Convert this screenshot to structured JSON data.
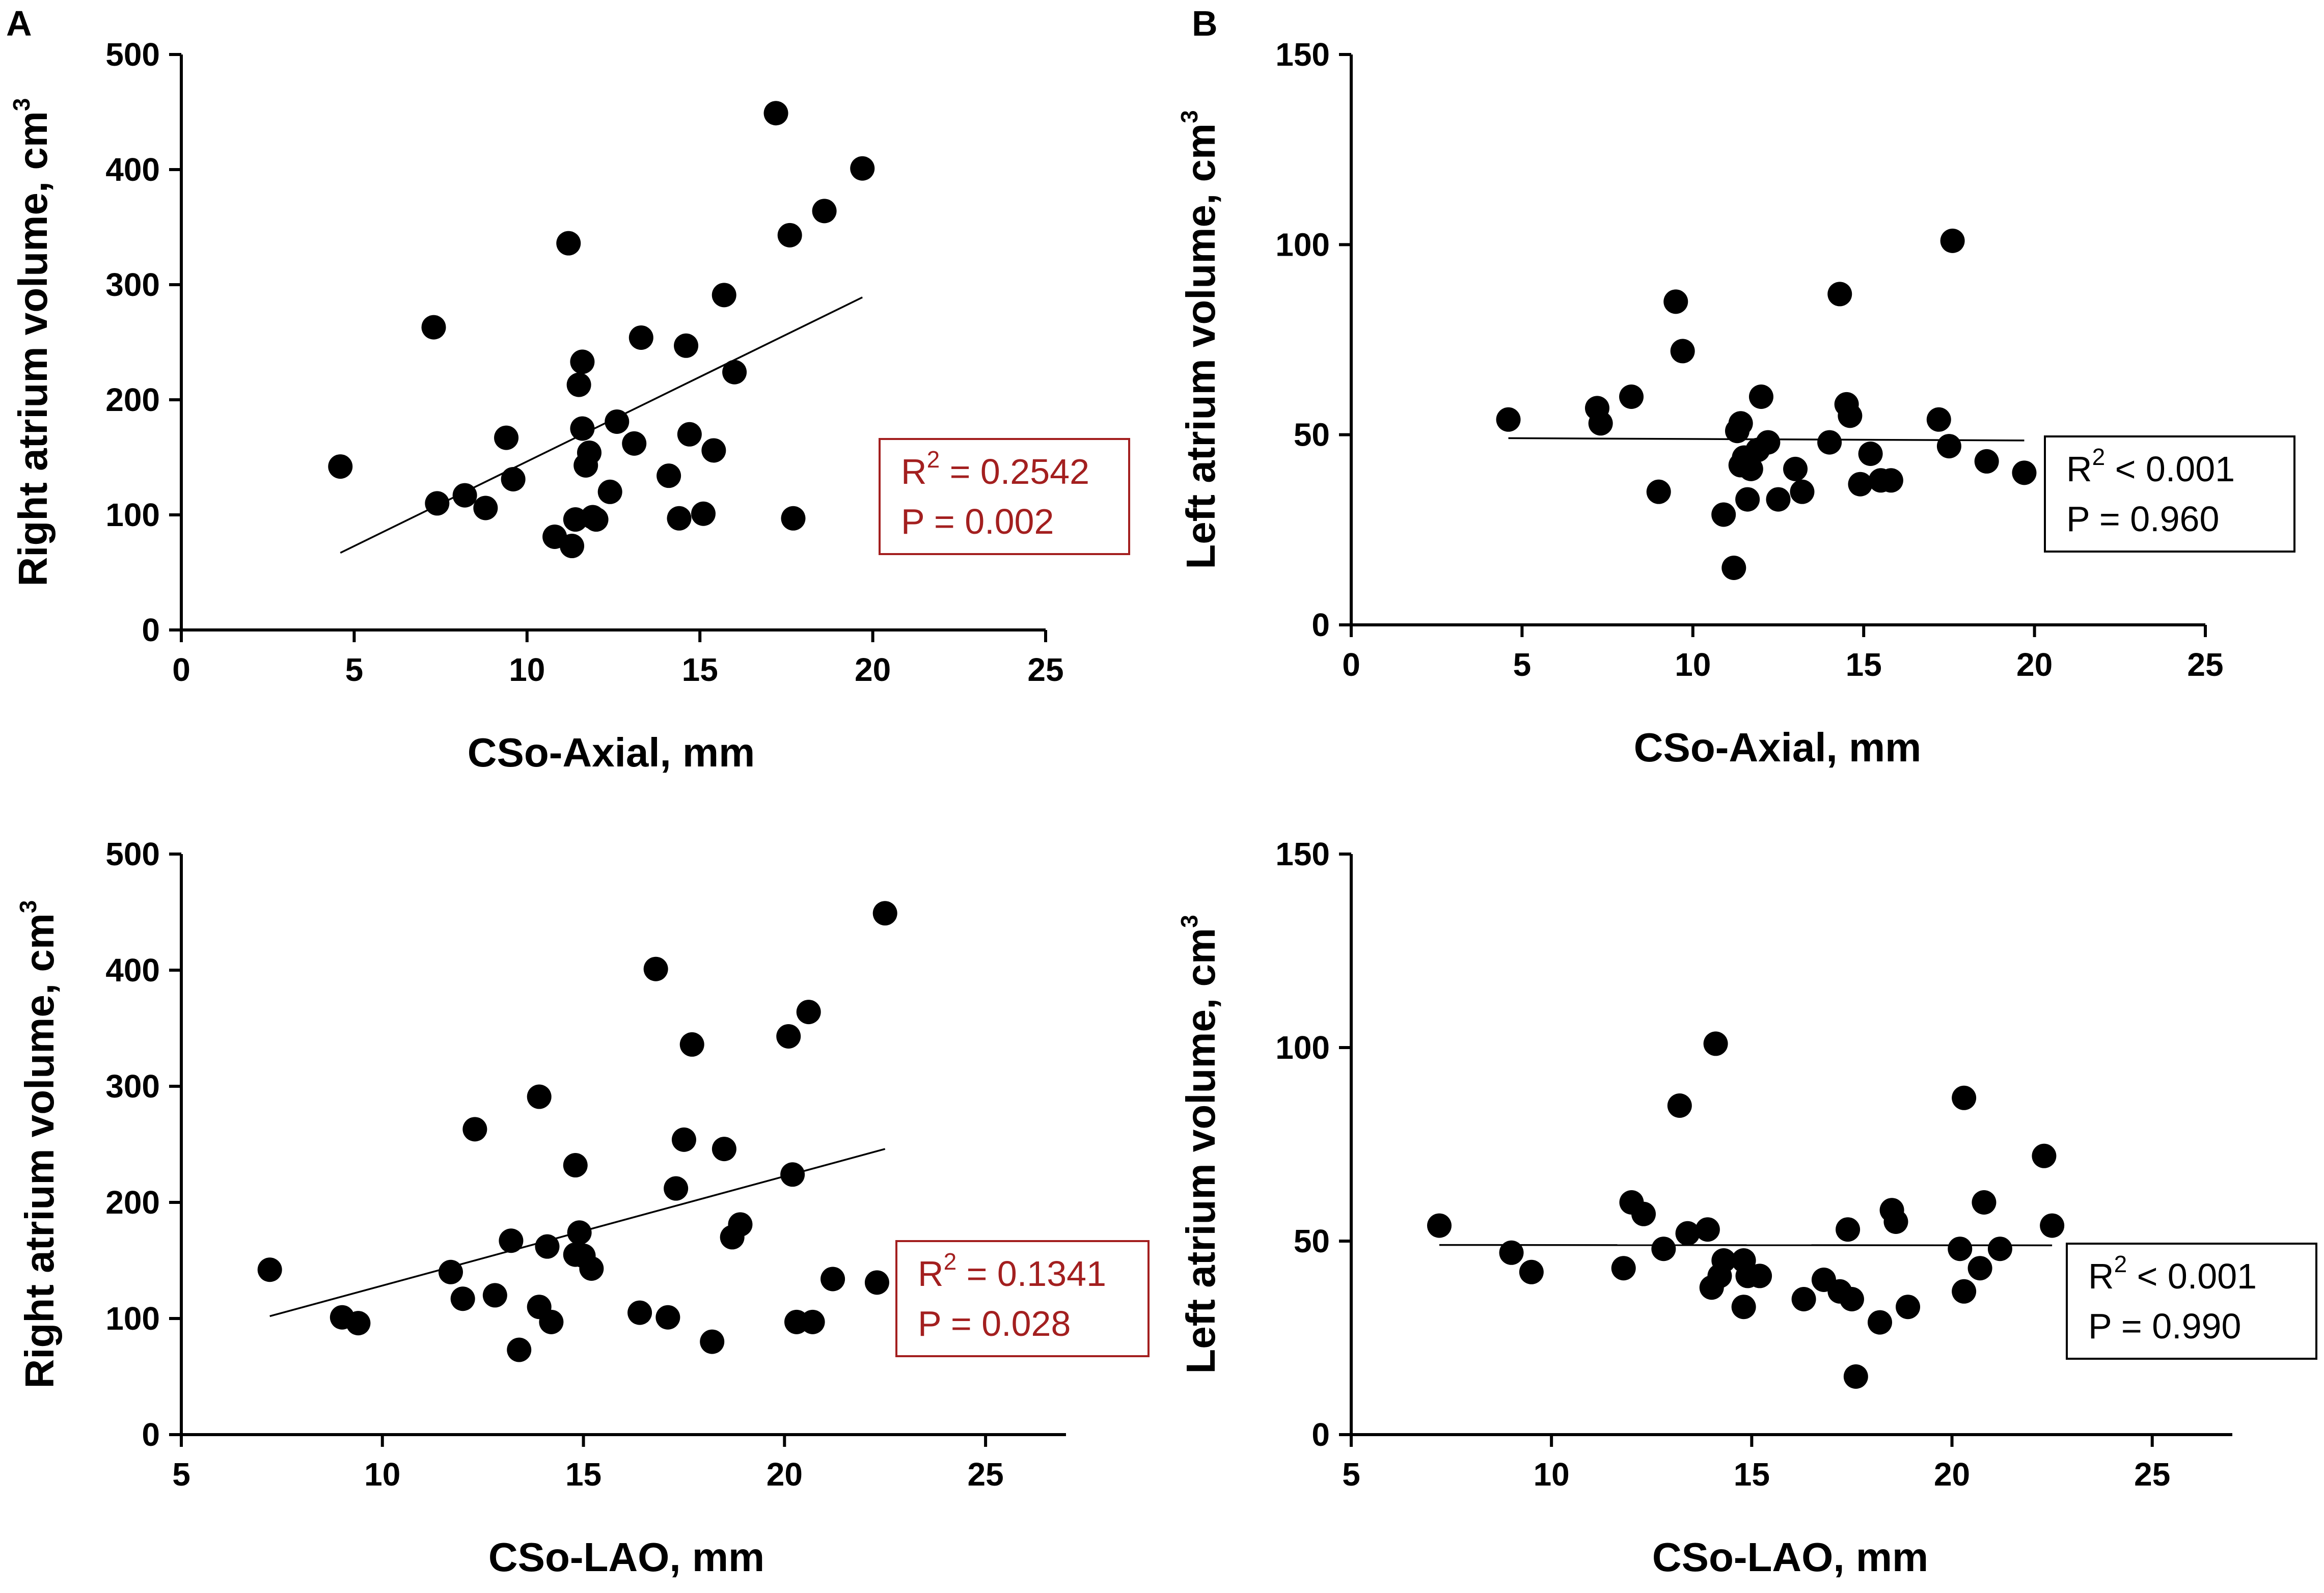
{
  "figure": {
    "panel_letters": [
      "A",
      "B"
    ]
  },
  "chart_data": [
    {
      "type": "scatter",
      "id": "a-top",
      "title": "",
      "xlabel": "CSo-Axial, mm",
      "ylabel_main": "Right atrium volume, cm",
      "ylabel_sup": "3",
      "xlim": [
        0,
        25
      ],
      "ylim": [
        0,
        500
      ],
      "xticks": [
        0,
        5,
        10,
        15,
        20,
        25
      ],
      "yticks": [
        0,
        100,
        200,
        300,
        400,
        500
      ],
      "x": [
        4.6,
        7.3,
        7.4,
        8.2,
        8.8,
        9.4,
        9.6,
        10.8,
        11.2,
        11.3,
        11.4,
        11.5,
        11.6,
        11.6,
        11.7,
        11.8,
        11.9,
        12.0,
        12.4,
        12.6,
        13.1,
        13.3,
        14.1,
        14.4,
        14.6,
        14.7,
        15.1,
        15.4,
        15.7,
        16.0,
        17.2,
        17.6,
        17.7,
        18.6,
        19.7
      ],
      "y": [
        142,
        263,
        110,
        117,
        106,
        167,
        131,
        81,
        336,
        73,
        96,
        213,
        233,
        175,
        143,
        154,
        98,
        96,
        120,
        181,
        162,
        254,
        134,
        97,
        247,
        170,
        101,
        156,
        291,
        224,
        449,
        343,
        97,
        364,
        401
      ],
      "fit_line": {
        "x": [
          4.6,
          19.7
        ],
        "y": [
          67,
          289
        ]
      },
      "stats": {
        "r2": "R",
        "r2_sup": "2",
        "r2_rest": " = 0.2542",
        "p": "P = 0.002"
      },
      "stats_color": "#a31f1f",
      "point_color": "#000000"
    },
    {
      "type": "scatter",
      "id": "b-top",
      "title": "",
      "xlabel": "CSo-Axial, mm",
      "ylabel_main": "Left atrium volume, cm",
      "ylabel_sup": "3",
      "xlim": [
        0,
        25
      ],
      "ylim": [
        0,
        150
      ],
      "xticks": [
        0,
        5,
        10,
        15,
        20,
        25
      ],
      "yticks": [
        0,
        50,
        100,
        150
      ],
      "x": [
        4.6,
        7.2,
        7.3,
        8.2,
        9.0,
        9.5,
        9.7,
        10.9,
        11.2,
        11.3,
        11.4,
        11.4,
        11.5,
        11.6,
        11.7,
        11.9,
        12.0,
        12.2,
        12.5,
        13.0,
        13.2,
        14.0,
        14.3,
        14.5,
        14.6,
        14.9,
        15.2,
        15.5,
        15.8,
        17.2,
        17.5,
        17.6,
        18.6,
        19.7
      ],
      "y": [
        54,
        57,
        53,
        60,
        35,
        85,
        72,
        29,
        15,
        51,
        53,
        42,
        44,
        33,
        41,
        46,
        60,
        48,
        33,
        41,
        35,
        48,
        87,
        58,
        55,
        37,
        45,
        38,
        38,
        54,
        47,
        101,
        43,
        40
      ],
      "fit_line": {
        "x": [
          4.6,
          19.7
        ],
        "y": [
          49.1,
          48.5
        ]
      },
      "stats": {
        "r2": "R",
        "r2_sup": "2",
        "r2_rest": " < 0.001",
        "p": "P = 0.960"
      },
      "stats_color": "#000000",
      "point_color": "#000000"
    },
    {
      "type": "scatter",
      "id": "a-bottom",
      "title": "",
      "xlabel": "CSo-LAO, mm",
      "ylabel_main": "Right atrium volume, cm",
      "ylabel_sup": "3",
      "xlim": [
        5,
        27
      ],
      "ylim": [
        0,
        500
      ],
      "xticks": [
        5,
        10,
        15,
        20,
        25
      ],
      "yticks": [
        0,
        100,
        200,
        300,
        400,
        500
      ],
      "x": [
        7.2,
        9.0,
        9.4,
        11.7,
        12.0,
        12.3,
        12.8,
        13.2,
        13.4,
        13.9,
        13.9,
        14.1,
        14.2,
        14.8,
        14.8,
        14.9,
        15.0,
        15.2,
        16.4,
        16.8,
        17.1,
        17.3,
        17.5,
        17.7,
        18.2,
        18.5,
        18.7,
        18.9,
        20.1,
        20.2,
        20.3,
        20.6,
        20.7,
        21.2,
        22.3,
        22.5
      ],
      "y": [
        142,
        101,
        96,
        140,
        117,
        263,
        120,
        167,
        73,
        291,
        110,
        162,
        97,
        232,
        155,
        174,
        154,
        143,
        105,
        401,
        101,
        212,
        254,
        336,
        80,
        246,
        170,
        181,
        343,
        224,
        97,
        364,
        97,
        134,
        131,
        449
      ],
      "fit_line": {
        "x": [
          7.2,
          22.5
        ],
        "y": [
          102,
          246
        ]
      },
      "stats": {
        "r2": "R",
        "r2_sup": "2",
        "r2_rest": " = 0.1341",
        "p": "P = 0.028"
      },
      "stats_color": "#a31f1f",
      "point_color": "#000000"
    },
    {
      "type": "scatter",
      "id": "b-bottom",
      "title": "",
      "xlabel": "CSo-LAO, mm",
      "ylabel_main": "Left atrium volume, cm",
      "ylabel_sup": "3",
      "xlim": [
        5,
        27
      ],
      "ylim": [
        0,
        150
      ],
      "xticks": [
        5,
        10,
        15,
        20,
        25
      ],
      "yticks": [
        0,
        50,
        100,
        150
      ],
      "x": [
        7.2,
        9.0,
        9.5,
        11.8,
        12.0,
        12.3,
        12.8,
        13.2,
        13.4,
        13.9,
        14.0,
        14.1,
        14.2,
        14.3,
        14.8,
        14.8,
        14.9,
        15.2,
        16.3,
        16.8,
        17.2,
        17.4,
        17.5,
        17.6,
        18.2,
        18.5,
        18.6,
        18.9,
        20.2,
        20.3,
        20.3,
        20.7,
        20.8,
        21.2,
        22.3,
        22.5
      ],
      "y": [
        54,
        47,
        42,
        43,
        60,
        57,
        48,
        85,
        52,
        53,
        38,
        101,
        41,
        45,
        33,
        45,
        41,
        41,
        35,
        40,
        37,
        53,
        35,
        15,
        29,
        58,
        55,
        33,
        48,
        37,
        87,
        43,
        60,
        48,
        72,
        54
      ],
      "fit_line": {
        "x": [
          7.2,
          22.5
        ],
        "y": [
          49.0,
          48.9
        ]
      },
      "stats": {
        "r2": "R",
        "r2_sup": "2",
        "r2_rest": " < 0.001",
        "p": "P = 0.990"
      },
      "stats_color": "#000000",
      "point_color": "#000000"
    }
  ]
}
